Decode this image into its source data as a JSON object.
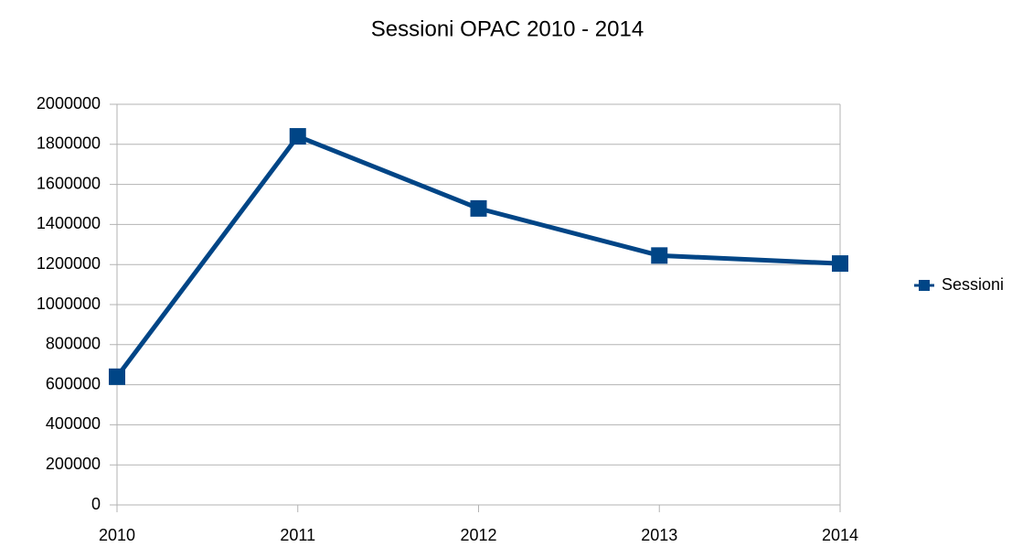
{
  "chart_data": {
    "type": "line",
    "title": "Sessioni OPAC 2010 - 2014",
    "categories": [
      "2010",
      "2011",
      "2012",
      "2013",
      "2014"
    ],
    "series": [
      {
        "name": "Sessioni",
        "color": "#004586",
        "values": [
          640000,
          1840000,
          1480000,
          1245000,
          1205000
        ]
      }
    ],
    "ylim": [
      0,
      2000000
    ],
    "yticks": [
      0,
      200000,
      400000,
      600000,
      800000,
      1000000,
      1200000,
      1400000,
      1600000,
      1800000,
      2000000
    ],
    "grid": true,
    "legend": "right"
  }
}
